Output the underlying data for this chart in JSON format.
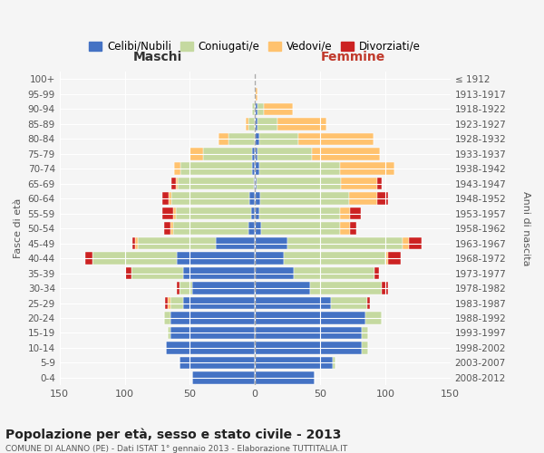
{
  "age_groups": [
    "0-4",
    "5-9",
    "10-14",
    "15-19",
    "20-24",
    "25-29",
    "30-34",
    "35-39",
    "40-44",
    "45-49",
    "50-54",
    "55-59",
    "60-64",
    "65-69",
    "70-74",
    "75-79",
    "80-84",
    "85-89",
    "90-94",
    "95-99",
    "100+"
  ],
  "birth_years": [
    "2008-2012",
    "2003-2007",
    "1998-2002",
    "1993-1997",
    "1988-1992",
    "1983-1987",
    "1978-1982",
    "1973-1977",
    "1968-1972",
    "1963-1967",
    "1958-1962",
    "1953-1957",
    "1948-1952",
    "1943-1947",
    "1938-1942",
    "1933-1937",
    "1928-1932",
    "1923-1927",
    "1918-1922",
    "1913-1917",
    "≤ 1912"
  ],
  "males": {
    "celibi": [
      48,
      58,
      68,
      65,
      65,
      55,
      48,
      55,
      60,
      30,
      5,
      3,
      4,
      1,
      2,
      2,
      0,
      0,
      0,
      0,
      0
    ],
    "coniugati": [
      0,
      0,
      0,
      2,
      5,
      10,
      10,
      40,
      65,
      60,
      58,
      58,
      60,
      58,
      55,
      38,
      20,
      5,
      2,
      0,
      0
    ],
    "vedovi": [
      0,
      0,
      0,
      0,
      0,
      2,
      0,
      0,
      0,
      2,
      2,
      2,
      2,
      2,
      5,
      10,
      8,
      2,
      0,
      0,
      0
    ],
    "divorziati": [
      0,
      0,
      0,
      0,
      0,
      2,
      2,
      5,
      5,
      2,
      5,
      8,
      5,
      3,
      0,
      0,
      0,
      0,
      0,
      0,
      0
    ]
  },
  "females": {
    "nubili": [
      46,
      60,
      82,
      82,
      85,
      58,
      42,
      30,
      22,
      25,
      5,
      3,
      4,
      1,
      3,
      2,
      3,
      2,
      2,
      0,
      0
    ],
    "coniugate": [
      0,
      2,
      5,
      5,
      12,
      28,
      55,
      62,
      78,
      88,
      60,
      62,
      68,
      65,
      62,
      42,
      30,
      15,
      5,
      0,
      0
    ],
    "vedove": [
      0,
      0,
      0,
      0,
      0,
      0,
      0,
      0,
      2,
      5,
      8,
      8,
      22,
      28,
      42,
      52,
      58,
      38,
      22,
      2,
      0
    ],
    "divorziate": [
      0,
      0,
      0,
      0,
      0,
      2,
      5,
      3,
      10,
      10,
      5,
      8,
      8,
      3,
      0,
      0,
      0,
      0,
      0,
      0,
      0
    ]
  },
  "colors": {
    "celibi": "#4472c4",
    "coniugati": "#c5d9a0",
    "vedovi": "#ffc26e",
    "divorziati": "#cc2222"
  },
  "title": "Popolazione per età, sesso e stato civile - 2013",
  "subtitle": "COMUNE DI ALANNO (PE) - Dati ISTAT 1° gennaio 2013 - Elaborazione TUTTITALIA.IT",
  "xlabel_left": "Maschi",
  "xlabel_right": "Femmine",
  "ylabel_left": "Fasce di età",
  "ylabel_right": "Anni di nascita",
  "xlim": 150,
  "background_color": "#f5f5f5",
  "legend_labels": [
    "Celibi/Nubili",
    "Coniugati/e",
    "Vedovi/e",
    "Divorziati/e"
  ]
}
